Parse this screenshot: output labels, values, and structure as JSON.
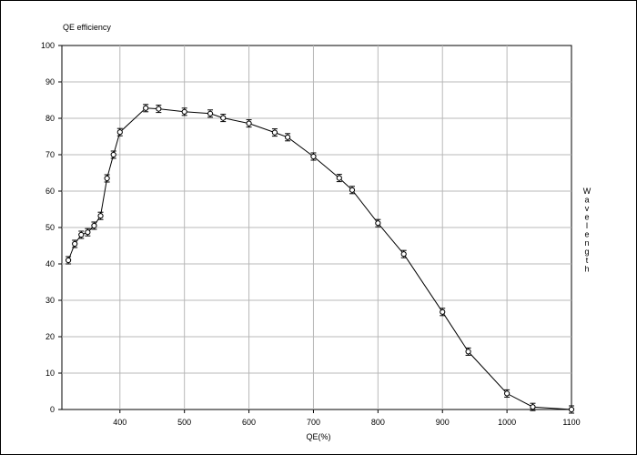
{
  "chart_data": {
    "type": "line",
    "title": "QE efficiency",
    "xlabel": "QE(%)",
    "ylabel": "Wavelength",
    "xlim": [
      310,
      1100
    ],
    "ylim": [
      0,
      100
    ],
    "xticks": [
      400,
      500,
      600,
      700,
      800,
      900,
      1000,
      1100
    ],
    "yticks": [
      0,
      10,
      20,
      30,
      40,
      50,
      60,
      70,
      80,
      90,
      100
    ],
    "grid": true,
    "series": [
      {
        "x": [
          320,
          330,
          340,
          350,
          360,
          370,
          380,
          390,
          400,
          440,
          460,
          500,
          540,
          560,
          600,
          640,
          660,
          700,
          740,
          760,
          800,
          840,
          900,
          940,
          1000,
          1040,
          1100
        ],
        "values": [
          41.0,
          45.5,
          48.0,
          48.7,
          50.5,
          53.2,
          63.5,
          70.0,
          76.2,
          82.8,
          82.6,
          81.8,
          81.3,
          80.1,
          78.6,
          76.1,
          74.8,
          69.5,
          63.6,
          60.3,
          51.2,
          42.7,
          26.8,
          15.9,
          4.4,
          0.7,
          0.0
        ],
        "color": "#000000"
      }
    ]
  }
}
